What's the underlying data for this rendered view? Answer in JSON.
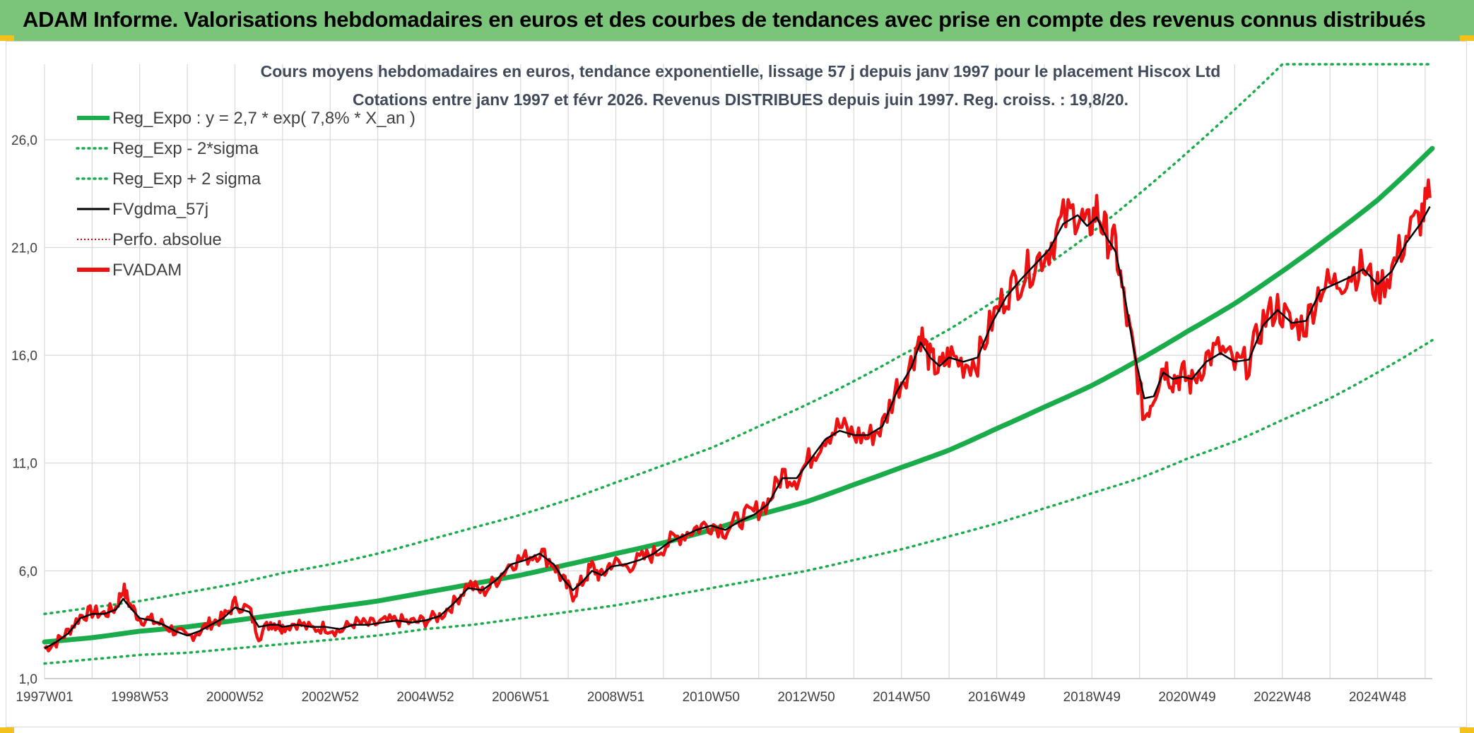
{
  "header": {
    "title": "ADAM Informe. Valorisations hebdomadaires en euros et des courbes de tendances avec prise en compte des revenus connus distribués"
  },
  "colors": {
    "header_bg": "#7bc57a",
    "accent": "#f3c01c",
    "trend": "#1aab4a",
    "smooth": "#000000",
    "price": "#ee1111",
    "perfo": "#cc0000",
    "grid": "#d9d9d9"
  },
  "chart_data": {
    "type": "line",
    "title_lines": [
      "Cours moyens hebdomadaires en euros, tendance exponentielle, lissage 57 j depuis janv 1997 pour le placement Hiscox Ltd",
      "Cotations entre janv 1997 et févr 2026. Revenus DISTRIBUES depuis juin 1997. Reg. croiss. : 19,8/20."
    ],
    "x_start_year": 1997.0,
    "x_end_year": 2026.15,
    "ylim": [
      1.0,
      29.5
    ],
    "yticks": [
      1.0,
      6.0,
      11.0,
      16.0,
      21.0,
      26.0
    ],
    "ytick_labels": [
      "1,0",
      "6,0",
      "11,0",
      "16,0",
      "21,0",
      "26,0"
    ],
    "x_tick_labels": [
      "1997W01",
      "1998W53",
      "2000W52",
      "2002W52",
      "2004W52",
      "2006W51",
      "2008W51",
      "2010W50",
      "2012W50",
      "2014W50",
      "2016W49",
      "2018W49",
      "2020W49",
      "2022W48",
      "2024W48"
    ],
    "x_tick_years": [
      1997.0,
      1999.0,
      2001.0,
      2003.0,
      2005.0,
      2007.0,
      2009.0,
      2011.0,
      2013.0,
      2015.0,
      2017.0,
      2019.0,
      2021.0,
      2023.0,
      2025.0
    ],
    "grid": true,
    "legend_position": "top-left",
    "legend": [
      {
        "label": "Reg_Expo : y = 2,7 * exp( 7,8% *  X_an )",
        "style": "solid-thick",
        "color": "#1aab4a"
      },
      {
        "label": "Reg_Exp - 2*sigma",
        "style": "dotted",
        "color": "#1aab4a"
      },
      {
        "label": "Reg_Exp + 2 sigma",
        "style": "dotted",
        "color": "#1aab4a"
      },
      {
        "label": "FVgdma_57j",
        "style": "solid",
        "color": "#000000"
      },
      {
        "label": "Perfo. absolue",
        "style": "dotted-thin",
        "color": "#cc0000"
      },
      {
        "label": "FVADAM",
        "style": "solid-thick",
        "color": "#ee1111"
      }
    ],
    "trend": {
      "years": [
        1997,
        1998,
        1999,
        2000,
        2001,
        2002,
        2003,
        2004,
        2005,
        2006,
        2007,
        2008,
        2009,
        2010,
        2011,
        2012,
        2013,
        2014,
        2015,
        2016,
        2017,
        2018,
        2019,
        2020,
        2021,
        2022,
        2023,
        2024,
        2025,
        2026.15
      ],
      "regression": [
        2.7,
        2.9,
        3.2,
        3.4,
        3.7,
        4.0,
        4.3,
        4.6,
        5.0,
        5.4,
        5.8,
        6.3,
        6.8,
        7.3,
        7.9,
        8.6,
        9.2,
        10.0,
        10.8,
        11.6,
        12.6,
        13.6,
        14.6,
        15.8,
        17.1,
        18.4,
        19.9,
        21.5,
        23.2,
        25.6
      ],
      "lower": [
        1.7,
        1.9,
        2.1,
        2.2,
        2.4,
        2.6,
        2.8,
        3.0,
        3.3,
        3.5,
        3.8,
        4.1,
        4.4,
        4.8,
        5.2,
        5.6,
        6.0,
        6.5,
        7.0,
        7.6,
        8.2,
        8.9,
        9.6,
        10.3,
        11.2,
        12.0,
        13.0,
        14.0,
        15.2,
        16.7
      ],
      "upper": [
        4.0,
        4.3,
        4.6,
        5.0,
        5.4,
        5.9,
        6.3,
        6.8,
        7.4,
        8.0,
        8.6,
        9.3,
        10.1,
        10.9,
        11.7,
        12.7,
        13.7,
        14.8,
        16.0,
        17.2,
        18.6,
        20.1,
        21.7,
        23.5,
        25.4,
        27.4,
        29.5,
        29.5,
        29.5,
        29.5
      ]
    },
    "price_series": {
      "x": [
        1997.0,
        1997.25,
        1997.5,
        1997.75,
        1998.0,
        1998.25,
        1998.5,
        1998.65,
        1998.8,
        1999.0,
        1999.25,
        1999.5,
        1999.75,
        2000.0,
        2000.25,
        2000.5,
        2000.75,
        2001.0,
        2001.3,
        2001.5,
        2001.75,
        2001.9,
        2002.0,
        2002.3,
        2002.6,
        2002.9,
        2003.2,
        2003.5,
        2003.8,
        2004.1,
        2004.4,
        2004.7,
        2005.0,
        2005.3,
        2005.6,
        2005.9,
        2006.2,
        2006.5,
        2006.8,
        2007.1,
        2007.4,
        2007.7,
        2007.9,
        2008.1,
        2008.3,
        2008.5,
        2008.7,
        2008.9,
        2009.2,
        2009.5,
        2009.8,
        2010.1,
        2010.4,
        2010.7,
        2011.0,
        2011.3,
        2011.6,
        2011.9,
        2012.2,
        2012.5,
        2012.8,
        2013.1,
        2013.4,
        2013.7,
        2014.0,
        2014.3,
        2014.6,
        2014.9,
        2015.2,
        2015.4,
        2015.6,
        2015.8,
        2016.0,
        2016.3,
        2016.6,
        2016.9,
        2017.2,
        2017.5,
        2017.8,
        2018.1,
        2018.4,
        2018.7,
        2018.9,
        2019.1,
        2019.3,
        2019.5,
        2019.7,
        2019.9,
        2020.1,
        2020.3,
        2020.5,
        2020.7,
        2020.9,
        2021.1,
        2021.4,
        2021.7,
        2022.0,
        2022.3,
        2022.6,
        2022.9,
        2023.2,
        2023.5,
        2023.8,
        2024.1,
        2024.4,
        2024.7,
        2025.0,
        2025.3,
        2025.6,
        2025.9,
        2026.1
      ],
      "fvadam": [
        2.4,
        2.7,
        3.2,
        3.9,
        4.1,
        4.0,
        4.3,
        5.2,
        4.4,
        3.8,
        3.7,
        3.5,
        3.2,
        2.9,
        3.2,
        3.6,
        3.8,
        4.5,
        4.2,
        3.0,
        3.6,
        3.5,
        3.4,
        3.6,
        3.3,
        3.4,
        3.2,
        3.6,
        3.5,
        3.6,
        3.7,
        3.6,
        3.7,
        3.9,
        4.5,
        5.4,
        5.0,
        5.6,
        6.4,
        6.6,
        6.9,
        6.3,
        5.5,
        4.9,
        5.5,
        6.2,
        5.7,
        6.4,
        6.2,
        6.5,
        6.8,
        7.3,
        7.7,
        8.0,
        8.2,
        7.9,
        8.4,
        8.7,
        9.2,
        10.5,
        10.3,
        11.3,
        12.3,
        12.7,
        12.3,
        12.2,
        12.7,
        14.5,
        15.6,
        17.0,
        15.8,
        15.3,
        16.0,
        15.6,
        15.8,
        17.6,
        18.9,
        19.6,
        20.3,
        21.0,
        22.3,
        22.7,
        21.8,
        22.8,
        21.6,
        21.0,
        18.1,
        15.8,
        13.1,
        14.2,
        15.6,
        14.9,
        15.1,
        14.7,
        15.9,
        16.3,
        15.5,
        15.7,
        17.6,
        18.3,
        17.3,
        17.5,
        19.2,
        19.3,
        19.8,
        20.1,
        19.0,
        20.0,
        21.5,
        22.4,
        23.3
      ],
      "fvgdma": [
        2.4,
        2.7,
        3.1,
        3.8,
        4.0,
        4.0,
        4.2,
        4.7,
        4.3,
        3.8,
        3.7,
        3.5,
        3.2,
        3.0,
        3.2,
        3.5,
        3.8,
        4.3,
        4.1,
        3.4,
        3.5,
        3.5,
        3.4,
        3.5,
        3.4,
        3.4,
        3.3,
        3.5,
        3.5,
        3.6,
        3.7,
        3.6,
        3.7,
        3.9,
        4.5,
        5.2,
        5.1,
        5.6,
        6.3,
        6.5,
        6.8,
        6.3,
        5.6,
        5.1,
        5.5,
        6.0,
        5.8,
        6.2,
        6.3,
        6.5,
        6.8,
        7.3,
        7.6,
        7.9,
        8.1,
        7.9,
        8.3,
        8.6,
        9.1,
        10.3,
        10.3,
        11.2,
        12.1,
        12.5,
        12.3,
        12.3,
        12.7,
        14.3,
        15.4,
        16.6,
        15.9,
        15.5,
        15.9,
        15.7,
        15.9,
        17.5,
        18.7,
        19.5,
        20.2,
        20.9,
        22.1,
        22.5,
        22.0,
        22.4,
        21.5,
        20.8,
        18.6,
        16.0,
        14.0,
        14.1,
        15.2,
        14.9,
        15.0,
        14.9,
        15.7,
        16.1,
        15.7,
        15.8,
        17.4,
        18.1,
        17.5,
        17.6,
        19.0,
        19.3,
        19.6,
        20.0,
        19.3,
        19.9,
        21.2,
        22.1,
        22.9
      ]
    }
  }
}
